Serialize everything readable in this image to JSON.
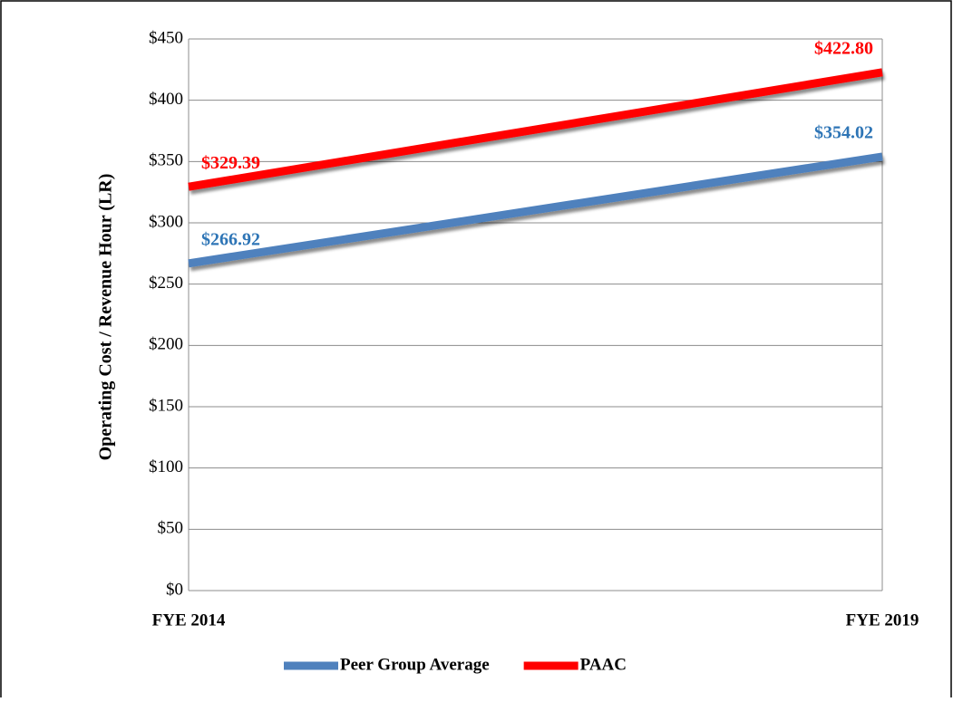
{
  "chart_data": {
    "type": "line",
    "y_axis_label": "Operating Cost / Revenue Hour (LR)",
    "categories": [
      "FYE 2014",
      "FYE 2019"
    ],
    "series": [
      {
        "name": "Peer Group Average",
        "color": "#4f81bd",
        "label_color": "#2e75b6",
        "values": [
          266.92,
          354.02
        ],
        "value_labels": [
          "$266.92",
          "$354.02"
        ]
      },
      {
        "name": "PAAC",
        "color": "#ff0000",
        "label_color": "#ff0000",
        "values": [
          329.39,
          422.8
        ],
        "value_labels": [
          "$329.39",
          "$422.80"
        ]
      }
    ],
    "ylim": [
      0,
      450
    ],
    "yticks": [
      {
        "value": 0,
        "label": "$0"
      },
      {
        "value": 50,
        "label": "$50"
      },
      {
        "value": 100,
        "label": "$100"
      },
      {
        "value": 150,
        "label": "$150"
      },
      {
        "value": 200,
        "label": "$200"
      },
      {
        "value": 250,
        "label": "$250"
      },
      {
        "value": 300,
        "label": "$300"
      },
      {
        "value": 350,
        "label": "$350"
      },
      {
        "value": 400,
        "label": "$400"
      },
      {
        "value": 450,
        "label": "$450"
      }
    ],
    "grid": true,
    "legend": "bottom"
  }
}
